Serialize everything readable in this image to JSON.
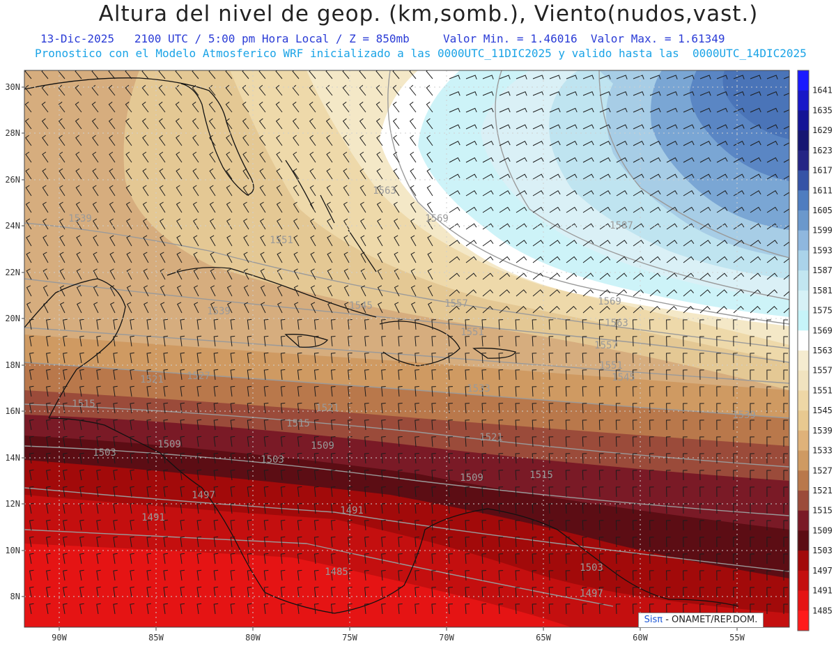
{
  "header": {
    "title": "Altura del nivel de geop. (km,somb.), Viento(nudos,vast.)",
    "line1": "13-Dic-2025   2100 UTC / 5:00 pm Hora Local / Z = 850mb     Valor Min. = 1.46016  Valor Max. = 1.61349",
    "line2": "Pronostico con el Modelo Atmosferico WRF inicializado a las 0000UTC_11DIC2025 y valido hasta las  0000UTC_14DIC2025"
  },
  "map": {
    "lat_labels": [
      "30N",
      "28N",
      "26N",
      "24N",
      "22N",
      "20N",
      "18N",
      "16N",
      "14N",
      "12N",
      "10N",
      "8N"
    ],
    "lon_labels": [
      "90W",
      "85W",
      "80W",
      "75W",
      "70W",
      "65W",
      "60W",
      "55W"
    ],
    "isoline_labels": [
      {
        "text": "1563"
      },
      {
        "text": "1569"
      },
      {
        "text": "1587"
      },
      {
        "text": "1539"
      },
      {
        "text": "1551"
      },
      {
        "text": "1545"
      },
      {
        "text": "1557"
      },
      {
        "text": "1569"
      },
      {
        "text": "1563"
      },
      {
        "text": "1539"
      },
      {
        "text": "1551"
      },
      {
        "text": "1557"
      },
      {
        "text": "1551"
      },
      {
        "text": "1545"
      },
      {
        "text": "1527"
      },
      {
        "text": "1521"
      },
      {
        "text": "1533"
      },
      {
        "text": "1515"
      },
      {
        "text": "1521"
      },
      {
        "text": "1515"
      },
      {
        "text": "1509"
      },
      {
        "text": "1509"
      },
      {
        "text": "1521"
      },
      {
        "text": "1503"
      },
      {
        "text": "1503"
      },
      {
        "text": "1509"
      },
      {
        "text": "1515"
      },
      {
        "text": "1497"
      },
      {
        "text": "1491"
      },
      {
        "text": "1491"
      },
      {
        "text": "1485"
      },
      {
        "text": "1503"
      },
      {
        "text": "1497"
      },
      {
        "text": "1539"
      }
    ]
  },
  "colorbar": {
    "levels": [
      {
        "label": "1641",
        "color": "#1a1aff"
      },
      {
        "label": "1635",
        "color": "#1818c8"
      },
      {
        "label": "1629",
        "color": "#141496"
      },
      {
        "label": "1623",
        "color": "#161672"
      },
      {
        "label": "1617",
        "color": "#252585"
      },
      {
        "label": "1611",
        "color": "#3553a6"
      },
      {
        "label": "1605",
        "color": "#4f7dc0"
      },
      {
        "label": "1599",
        "color": "#6b98cc"
      },
      {
        "label": "1593",
        "color": "#8fb7de"
      },
      {
        "label": "1587",
        "color": "#aad3ea"
      },
      {
        "label": "1581",
        "color": "#c2e6f1"
      },
      {
        "label": "1575",
        "color": "#d6f1f6"
      },
      {
        "label": "1569",
        "color": "#c6f4f9"
      },
      {
        "label": "1563",
        "color": "#ffffff"
      },
      {
        "label": "1557",
        "color": "#f5ecd0"
      },
      {
        "label": "1551",
        "color": "#f1e3bf"
      },
      {
        "label": "1545",
        "color": "#eed7a6"
      },
      {
        "label": "1539",
        "color": "#e8c990"
      },
      {
        "label": "1533",
        "color": "#dfb27a"
      },
      {
        "label": "1527",
        "color": "#cf9a62"
      },
      {
        "label": "1521",
        "color": "#b9784b"
      },
      {
        "label": "1515",
        "color": "#9b4b3a"
      },
      {
        "label": "1509",
        "color": "#7a1a26"
      },
      {
        "label": "1503",
        "color": "#5c0d14"
      },
      {
        "label": "1497",
        "color": "#a20a0a"
      },
      {
        "label": "1491",
        "color": "#c40f0f"
      },
      {
        "label": "1485",
        "color": "#e51414"
      },
      {
        "label": "",
        "color": "#ff1c1c"
      }
    ]
  },
  "footer": {
    "brand_logo": "Sisπ",
    "brand_text": " - ONAMET/REP.DOM."
  }
}
